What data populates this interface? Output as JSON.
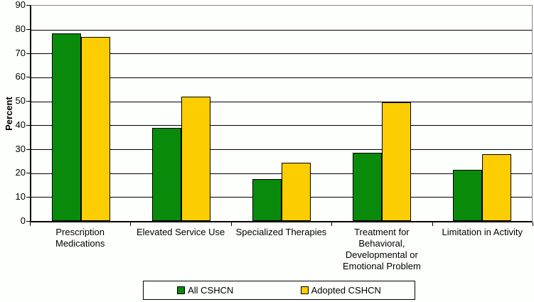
{
  "chart_data": {
    "type": "bar",
    "title": "",
    "xlabel": "",
    "ylabel": "Percent",
    "ylim": [
      0,
      90
    ],
    "ytick_step": 10,
    "yticks": [
      0,
      10,
      20,
      30,
      40,
      50,
      60,
      70,
      80,
      90
    ],
    "grid": true,
    "legend_position": "bottom",
    "categories": [
      "Prescription\nMedications",
      "Elevated Service Use",
      "Specialized Therapies",
      "Treatment for\nBehavioral,\nDevelopmental or\nEmotional Problem",
      "Limitation in Activity"
    ],
    "series": [
      {
        "name": "All CSHCN",
        "color": "#0a8a0a",
        "values": [
          78.5,
          39.0,
          17.5,
          28.5,
          21.5
        ]
      },
      {
        "name": "Adopted CSHCN",
        "color": "#fccd00",
        "values": [
          77.0,
          52.0,
          24.5,
          49.5,
          28.0
        ]
      }
    ],
    "colors": {
      "gridline": "#000000",
      "plot_border": "#848484",
      "axis": "#000000",
      "background": "#fdfffd"
    }
  }
}
